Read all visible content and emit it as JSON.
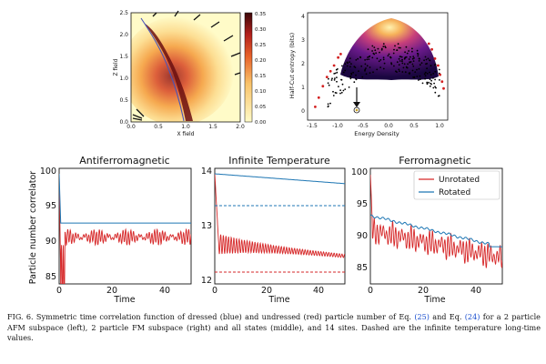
{
  "heatmap": {
    "xlabel": "X field",
    "ylabel": "Z field",
    "xticks": [
      "0.0",
      "0.5",
      "1.0",
      "1.5",
      "2.0"
    ],
    "yticks": [
      "0.0",
      "0.5",
      "1.0",
      "1.5",
      "2.0",
      "2.5"
    ],
    "colorbar_ticks": [
      "0.00",
      "0.05",
      "0.10",
      "0.15",
      "0.20",
      "0.25",
      "0.30",
      "0.35"
    ],
    "colors": {
      "low": "#fffbc8",
      "mid": "#f08a2a",
      "high": "#6b0f10",
      "curve": "#4a55b8"
    }
  },
  "entropy": {
    "xlabel": "Energy Density",
    "ylabel": "Half-Cut entropy (bits)",
    "xticks": [
      "-1.5",
      "-1.0",
      "-0.5",
      "0.0",
      "0.5",
      "1.0"
    ],
    "yticks": [
      "0",
      "1",
      "2",
      "3",
      "4"
    ],
    "colors": {
      "dots": "#000000",
      "edge": "#d32020",
      "cloud_low": "#2a0a55",
      "cloud_high": "#ffe7a0"
    }
  },
  "panels": {
    "ylabel": "Particle number correlator",
    "xlabel": "Time",
    "xticks": [
      "0",
      "20",
      "40"
    ],
    "afm": {
      "title": "Antiferromagnetic",
      "yticks": [
        "85",
        "90",
        "95",
        "100"
      ],
      "rotated_level": "93"
    },
    "inf": {
      "title": "Infinite Temperature",
      "yticks": [
        "12",
        "13",
        "14"
      ]
    },
    "fm": {
      "title": "Ferromagnetic",
      "yticks": [
        "85",
        "90",
        "95",
        "100"
      ]
    },
    "legend": {
      "unrotated": "Unrotated",
      "rotated": "Rotated"
    },
    "colors": {
      "unrotated": "#d62728",
      "rotated": "#1f77b4"
    }
  },
  "chart_data": [
    {
      "type": "heatmap",
      "title": "",
      "xlabel": "X field",
      "ylabel": "Z field",
      "xlim": [
        0,
        2.0
      ],
      "ylim": [
        0,
        2.5
      ],
      "colorbar_range": [
        0.0,
        0.35
      ],
      "peak_location": [
        1.0,
        1.0
      ],
      "dark_ridge": [
        [
          0.42,
          2.1
        ],
        [
          0.6,
          1.6
        ],
        [
          0.85,
          1.1
        ],
        [
          1.0,
          0.05
        ]
      ]
    },
    {
      "type": "scatter",
      "title": "",
      "xlabel": "Energy Density",
      "ylabel": "Half-Cut entropy (bits)",
      "xlim": [
        -1.6,
        1.15
      ],
      "ylim": [
        -0.3,
        4.3
      ],
      "series": [
        {
          "name": "black points (edge of spectrum)",
          "x": [
            -1.2,
            -1.05,
            -0.95,
            -0.85,
            -0.8,
            0.85,
            0.95,
            1.0
          ],
          "y": [
            0.8,
            1.6,
            2.1,
            2.3,
            2.5,
            2.6,
            2.0,
            1.4
          ]
        },
        {
          "name": "red points",
          "x": [
            -1.45,
            -1.3,
            -1.15,
            -1.0,
            0.8,
            0.92,
            1.05
          ],
          "y": [
            0.2,
            1.2,
            1.7,
            2.3,
            2.9,
            2.2,
            1.3
          ]
        }
      ],
      "annotation": "arrow marking low-energy state near x = -0.7"
    },
    {
      "type": "line",
      "title": "Antiferromagnetic",
      "xlabel": "Time",
      "ylabel": "Particle number correlator",
      "xlim": [
        0,
        50
      ],
      "ylim": [
        85,
        101
      ],
      "series": [
        {
          "name": "Rotated",
          "note": "flat at 93 after t~1"
        },
        {
          "name": "Unrotated",
          "note": "starts 100, drops to ~85, oscillates around 91 with amplitude ~1"
        }
      ]
    },
    {
      "type": "line",
      "title": "Infinite Temperature",
      "xlabel": "Time",
      "ylabel": "",
      "xlim": [
        0,
        50
      ],
      "ylim": [
        12,
        14
      ],
      "series": [
        {
          "name": "Rotated",
          "x": [
            0,
            50
          ],
          "y": [
            14.0,
            13.82
          ]
        },
        {
          "name": "Rotated long-time (dashed)",
          "y_const": 13.45
        },
        {
          "name": "Unrotated",
          "note": "starts ~14, damped oscillation ~12.75 decaying to ~12.5"
        },
        {
          "name": "Unrotated long-time (dashed)",
          "y_const": 12.13
        }
      ]
    },
    {
      "type": "line",
      "title": "Ferromagnetic",
      "xlabel": "Time",
      "ylabel": "",
      "xlim": [
        0,
        50
      ],
      "ylim": [
        83,
        101
      ],
      "series": [
        {
          "name": "Rotated",
          "x": [
            0,
            10,
            20,
            30,
            40,
            50
          ],
          "y": [
            93.5,
            92.5,
            91.5,
            90.5,
            89.5,
            88.8
          ]
        },
        {
          "name": "Unrotated",
          "note": "oscillates, mean decreasing from ~91 to ~87"
        }
      ]
    }
  ],
  "caption": {
    "p1": "FIG. 6. Symmetric time correlation function of dressed (blue) and undressed (red) particle number of Eq.",
    "r1": "(25)",
    "p2": "and Eq.",
    "r2": "(24)",
    "p3": "for a 2 particle AFM subspace (left), 2 particle FM subspace (right) and all states (middle), and 14 sites. Dashed are the infinite temperature long-time values."
  }
}
